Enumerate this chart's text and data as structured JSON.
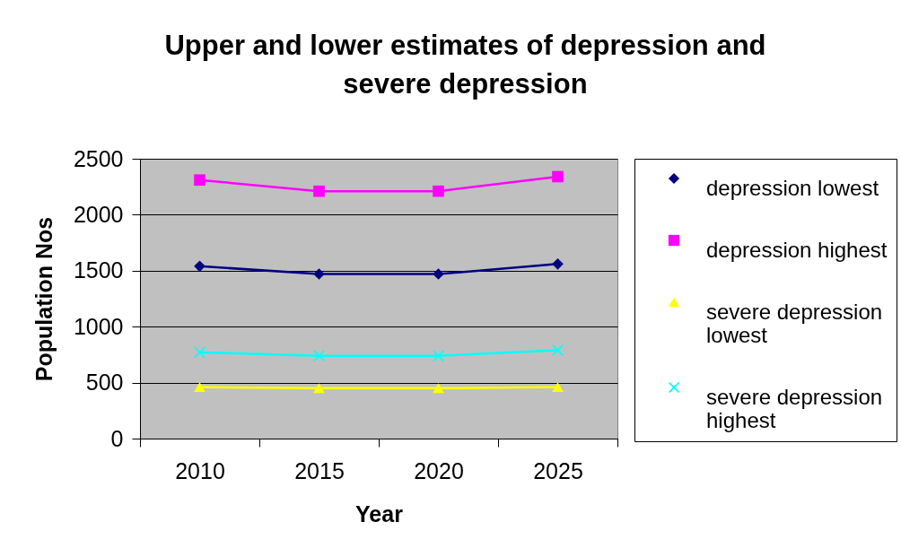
{
  "chart_data": {
    "type": "line",
    "title": "Upper and lower estimates of depression and severe depression",
    "xlabel": "Year",
    "ylabel": "Population Nos",
    "categories": [
      "2010",
      "2015",
      "2020",
      "2025"
    ],
    "ylim": [
      0,
      2500
    ],
    "yticks": [
      0,
      500,
      1000,
      1500,
      2000,
      2500
    ],
    "grid": "y",
    "legend": "right",
    "series": [
      {
        "name": "depression lowest",
        "color": "#000080",
        "marker": "diamond",
        "values": [
          1540,
          1470,
          1470,
          1560
        ]
      },
      {
        "name": "depression highest",
        "color": "#ff00ff",
        "marker": "square",
        "values": [
          2310,
          2210,
          2210,
          2340
        ]
      },
      {
        "name": "severe depression lowest",
        "color": "#ffff00",
        "marker": "triangle",
        "values": [
          460,
          450,
          450,
          460
        ]
      },
      {
        "name": "severe depression highest",
        "color": "#00ffff",
        "marker": "cross",
        "values": [
          770,
          740,
          740,
          790
        ]
      }
    ]
  }
}
